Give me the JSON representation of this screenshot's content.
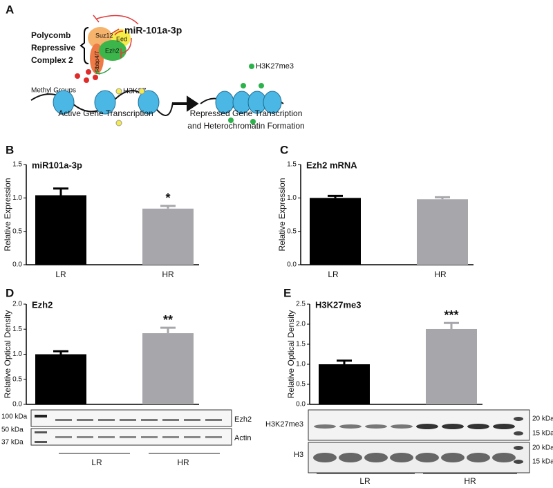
{
  "panel_a": {
    "label": "A",
    "complex": [
      "Polycomb",
      "Repressive",
      "Complex 2"
    ],
    "mirna": "miR-101a-3p",
    "subunits": [
      "Suz12",
      "Eed",
      "Ezh2",
      "Rbbp4/7"
    ],
    "methyl": "Methyl Groups",
    "mark": "H3K27",
    "mark_me3": "H3K27me3",
    "active": "Active Gene Transcription",
    "repressed": [
      "Repressed Gene Transcription",
      "and Heterochromatin Formation"
    ]
  },
  "chart_data": [
    {
      "type": "bar",
      "panel": "B",
      "title": "miR101a-3p",
      "ylabel": "Relative Expression",
      "categories": [
        "LR",
        "HR"
      ],
      "values": [
        1.04,
        0.84
      ],
      "errors": [
        0.1,
        0.04
      ],
      "value_annotations": [
        null,
        "*"
      ],
      "colors": [
        "#000000",
        "#a7a6ab"
      ],
      "ylim": [
        0,
        1.5
      ],
      "yticks": [
        {
          "value": 0,
          "label": "0.0"
        },
        {
          "value": 0.5,
          "label": "0.5"
        },
        {
          "value": 1,
          "label": "1.0"
        },
        {
          "value": 1.5,
          "label": "1.5"
        }
      ]
    },
    {
      "type": "bar",
      "panel": "C",
      "title": "Ezh2 mRNA",
      "ylabel": "Relative Expression",
      "categories": [
        "LR",
        "HR"
      ],
      "values": [
        1.0,
        0.98
      ],
      "errors": [
        0.03,
        0.03
      ],
      "colors": [
        "#000000",
        "#a7a6ab"
      ],
      "ylim": [
        0,
        1.5
      ],
      "yticks": [
        {
          "value": 0,
          "label": "0.0"
        },
        {
          "value": 0.5,
          "label": "0.5"
        },
        {
          "value": 1,
          "label": "1.0"
        },
        {
          "value": 1.5,
          "label": "1.5"
        }
      ]
    },
    {
      "type": "bar",
      "panel": "D",
      "title": "Ezh2",
      "ylabel": "Relative Optical Density",
      "categories": [
        "LR",
        "HR"
      ],
      "values": [
        1.0,
        1.42
      ],
      "errors": [
        0.06,
        0.11
      ],
      "value_annotations": [
        null,
        "**"
      ],
      "colors": [
        "#000000",
        "#a7a6ab"
      ],
      "ylim": [
        0,
        2
      ],
      "yticks": [
        {
          "value": 0,
          "label": "0.0"
        },
        {
          "value": 0.5,
          "label": "0.5"
        },
        {
          "value": 1,
          "label": "1.0"
        },
        {
          "value": 1.5,
          "label": "1.5"
        },
        {
          "value": 2,
          "label": "2.0"
        }
      ]
    },
    {
      "type": "bar",
      "panel": "E",
      "title": "H3K27me3",
      "ylabel": "Relative Optical Density",
      "categories": [
        "LR",
        "HR"
      ],
      "values": [
        1.0,
        1.88
      ],
      "errors": [
        0.09,
        0.15
      ],
      "value_annotations": [
        null,
        "***"
      ],
      "colors": [
        "#000000",
        "#a7a6ab"
      ],
      "ylim": [
        0,
        2.5
      ],
      "yticks": [
        {
          "value": 0,
          "label": "0.0"
        },
        {
          "value": 0.5,
          "label": "0.5"
        },
        {
          "value": 1,
          "label": "1.0"
        },
        {
          "value": 1.5,
          "label": "1.5"
        },
        {
          "value": 2,
          "label": "2.0"
        },
        {
          "value": 2.5,
          "label": "2.5"
        }
      ]
    }
  ],
  "blots": {
    "d": {
      "ladder": [
        "100 kDa",
        "50 kDa",
        "37 kDa"
      ],
      "rows": [
        "Ezh2",
        "Actin"
      ]
    },
    "e": {
      "rows": [
        "H3K27me3",
        "H3"
      ],
      "ladder": [
        "20 kDa",
        "15 kDa",
        "20 kDa",
        "15 kDa"
      ]
    }
  }
}
